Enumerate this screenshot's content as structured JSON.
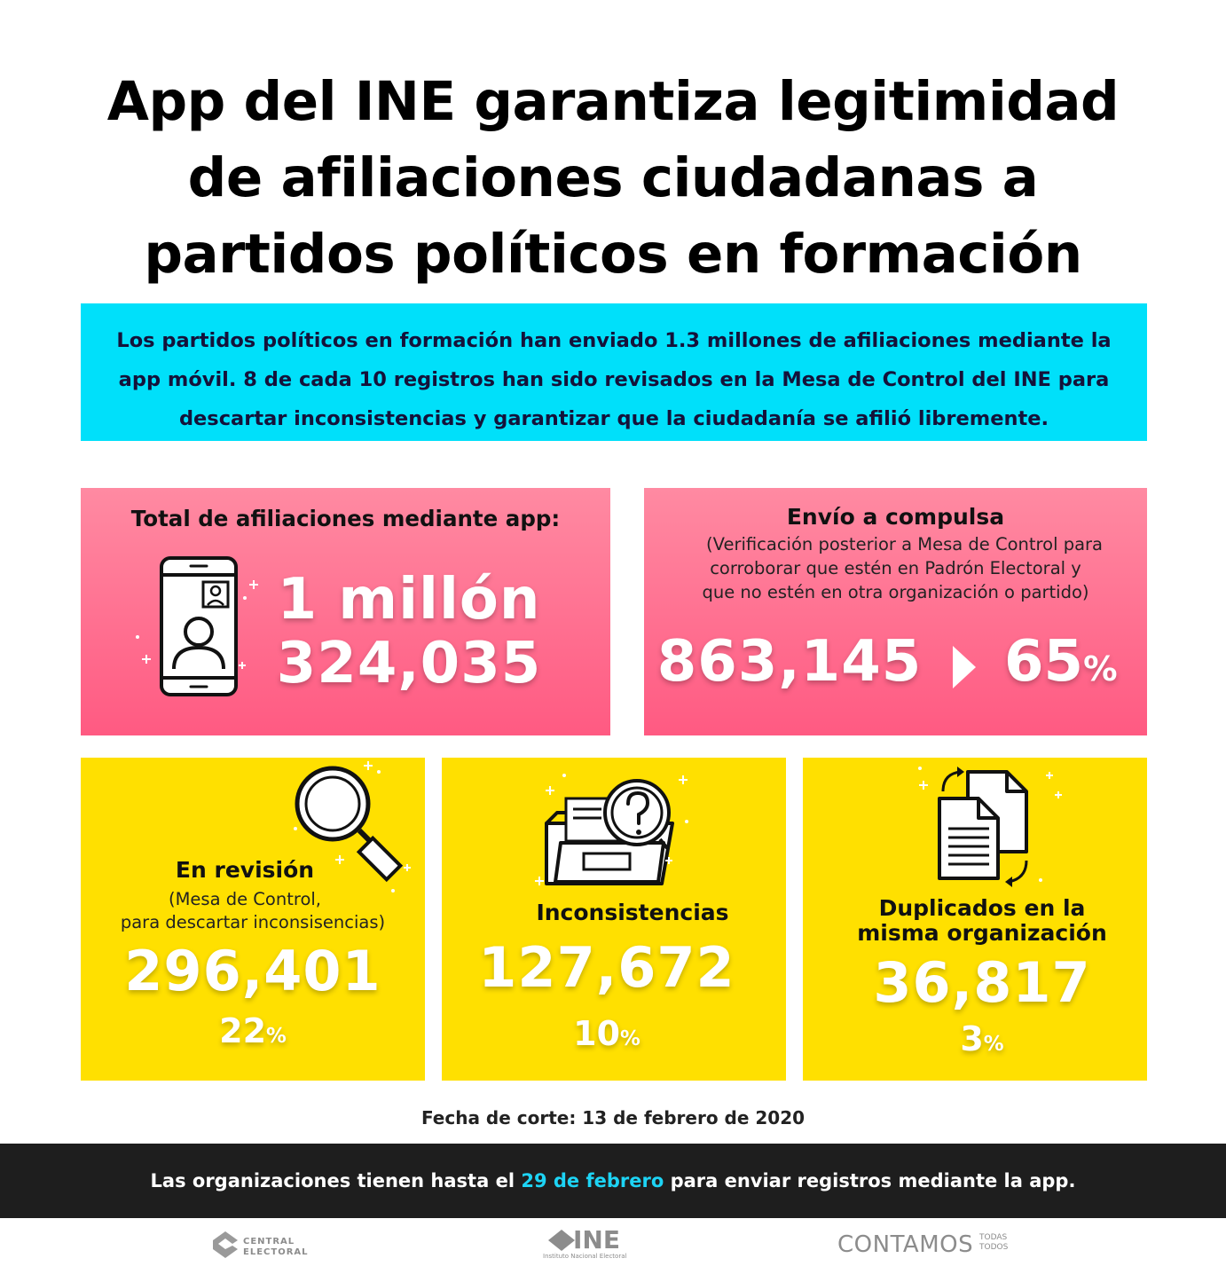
{
  "title": {
    "line1": "App del INE garantiza legitimidad",
    "line2": "de afiliaciones ciudadanas a",
    "line3": "partidos políticos en formación"
  },
  "intro": {
    "line1": "Los partidos políticos en formación han enviado 1.3 millones de afiliaciones mediante la",
    "line2": "app móvil. 8 de cada 10 registros han sido revisados en la Mesa de Control del INE para",
    "line3": "descartar inconsistencias y garantizar que la ciudadanía se afilió libremente."
  },
  "total_card": {
    "label": "Total de afiliaciones mediante app:",
    "value_line1": "1 millón",
    "value_line2": "324,035",
    "icon": "smartphone-user-icon"
  },
  "compulsa_card": {
    "label": "Envío a compulsa",
    "sub_line1": "(Verificación posterior a Mesa de Control para",
    "sub_line2": "corroborar que estén en Padrón Electoral y",
    "sub_line3": "que no estén en otra organización o partido)",
    "value": "863,145",
    "percent": "65",
    "percent_sign": "%",
    "icon": "play-arrow-icon"
  },
  "revision_card": {
    "label": "En revisión",
    "sub_line1": "(Mesa de Control,",
    "sub_line2": "para descartar inconsisencias)",
    "value": "296,401",
    "percent": "22",
    "percent_sign": "%",
    "icon": "magnifier-icon"
  },
  "inconsistencias_card": {
    "label": "Inconsistencias",
    "value": "127,672",
    "percent": "10",
    "percent_sign": "%",
    "icon": "folder-question-icon"
  },
  "duplicados_card": {
    "label_line1": "Duplicados en la",
    "label_line2": "misma organización",
    "value": "36,817",
    "percent": "3",
    "percent_sign": "%",
    "icon": "duplicate-documents-icon"
  },
  "cutoff": "Fecha de corte: 13 de febrero de 2020",
  "footer": {
    "before": "Las organizaciones tienen hasta el",
    "highlight": "29 de febrero",
    "after": "para enviar registros mediante la app."
  },
  "logos": {
    "central_line1": "CENTRAL",
    "central_line2": "ELECTORAL",
    "ine": "INE",
    "ine_sub": "Instituto Nacional Electoral",
    "contamos": "CONTAMOS",
    "todas": "TODAS",
    "todos": "TODOS"
  },
  "colors": {
    "cyan": "#00e0fa",
    "pink": "#ff6a8c",
    "yellow": "#ffe000",
    "footer_bg": "#1e1e1e",
    "highlight": "#1dd4f5"
  }
}
